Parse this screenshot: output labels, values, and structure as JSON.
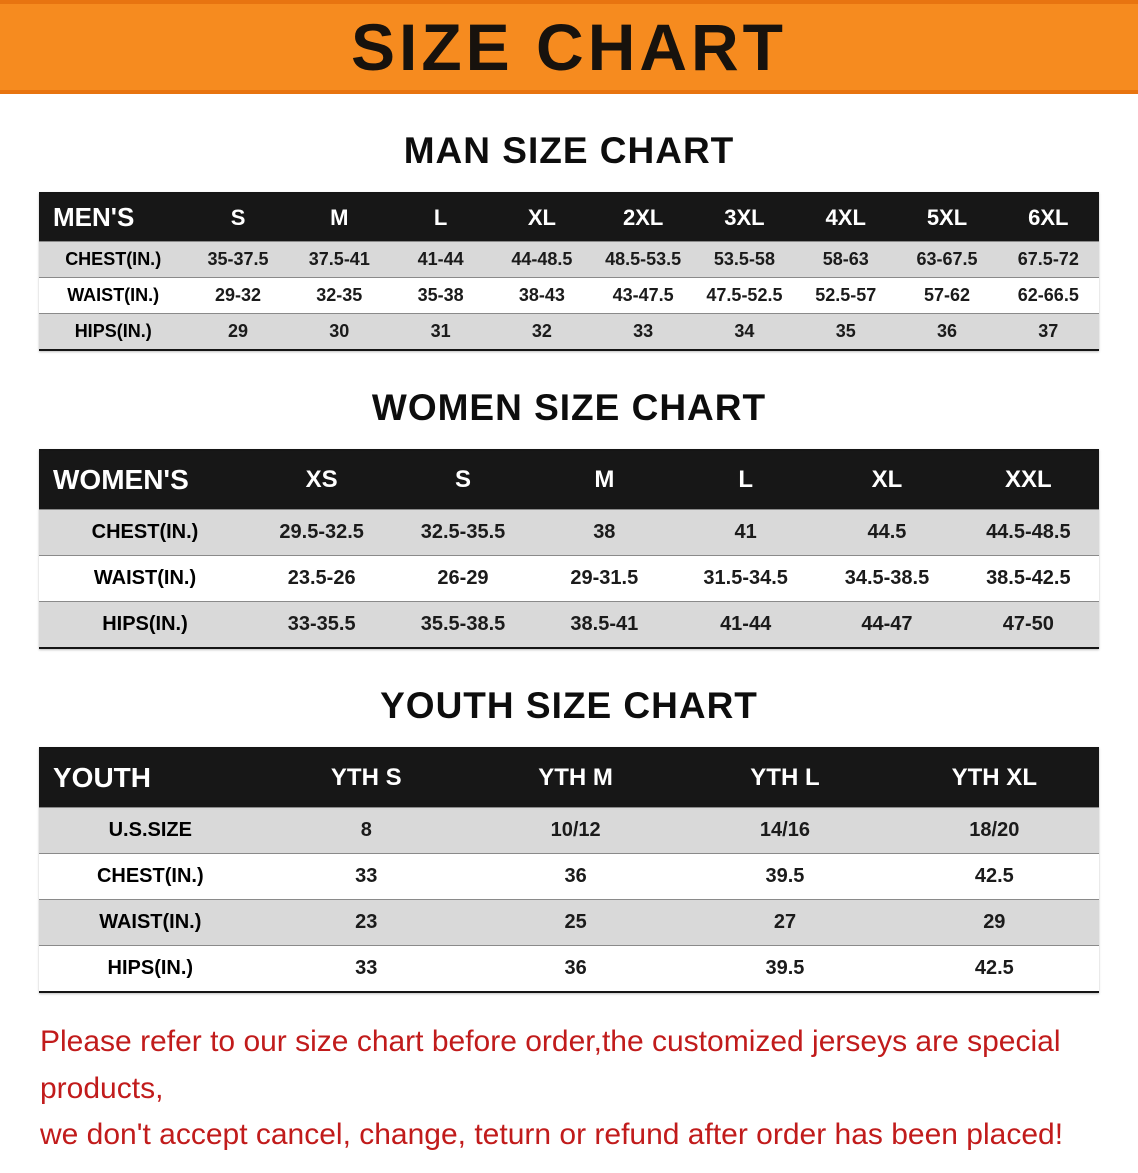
{
  "banner": {
    "title": "SIZE CHART",
    "bg_color": "#f68b1f",
    "border_color": "#e87410",
    "text_color": "#17120d"
  },
  "colors": {
    "table_header_bg": "#171717",
    "row_stripe": "#d9d9d9",
    "footer_text": "#c11b1b"
  },
  "sections": [
    {
      "heading": "MAN SIZE CHART",
      "header": [
        "MEN'S",
        "S",
        "M",
        "L",
        "XL",
        "2XL",
        "3XL",
        "4XL",
        "5XL",
        "6XL"
      ],
      "rows": [
        [
          "CHEST(IN.)",
          "35-37.5",
          "37.5-41",
          "41-44",
          "44-48.5",
          "48.5-53.5",
          "53.5-58",
          "58-63",
          "63-67.5",
          "67.5-72"
        ],
        [
          "WAIST(IN.)",
          "29-32",
          "32-35",
          "35-38",
          "38-43",
          "43-47.5",
          "47.5-52.5",
          "52.5-57",
          "57-62",
          "62-66.5"
        ],
        [
          "HIPS(IN.)",
          "29",
          "30",
          "31",
          "32",
          "33",
          "34",
          "35",
          "36",
          "37"
        ]
      ]
    },
    {
      "heading": "WOMEN SIZE CHART",
      "header": [
        "WOMEN'S",
        "XS",
        "S",
        "M",
        "L",
        "XL",
        "XXL"
      ],
      "rows": [
        [
          "CHEST(IN.)",
          "29.5-32.5",
          "32.5-35.5",
          "38",
          "41",
          "44.5",
          "44.5-48.5"
        ],
        [
          "WAIST(IN.)",
          "23.5-26",
          "26-29",
          "29-31.5",
          "31.5-34.5",
          "34.5-38.5",
          "38.5-42.5"
        ],
        [
          "HIPS(IN.)",
          "33-35.5",
          "35.5-38.5",
          "38.5-41",
          "41-44",
          "44-47",
          "47-50"
        ]
      ]
    },
    {
      "heading": "YOUTH SIZE CHART",
      "header": [
        "YOUTH",
        "YTH S",
        "YTH M",
        "YTH L",
        "YTH XL"
      ],
      "rows": [
        [
          "U.S.SIZE",
          "8",
          "10/12",
          "14/16",
          "18/20"
        ],
        [
          "CHEST(IN.)",
          "33",
          "36",
          "39.5",
          "42.5"
        ],
        [
          "WAIST(IN.)",
          "23",
          "25",
          "27",
          "29"
        ],
        [
          "HIPS(IN.)",
          "33",
          "36",
          "39.5",
          "42.5"
        ]
      ]
    }
  ],
  "footer": {
    "line1": "Please refer to our size chart before order,the customized jerseys are special products,",
    "line2": "we don't accept cancel, change, teturn or refund after order has been placed!"
  }
}
